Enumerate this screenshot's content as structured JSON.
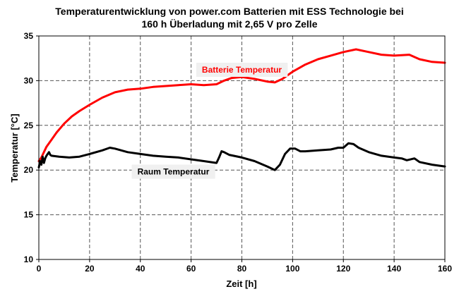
{
  "chart_data": {
    "type": "line",
    "title_line1": "Temperaturentwicklung von power.com Batterien mit ESS Technologie bei",
    "title_line2": "160 h Überladung mit 2,65 V pro Zelle",
    "xlabel": "Zeit [h]",
    "ylabel": "Temperatur [°C]",
    "xlim": [
      0,
      160
    ],
    "ylim": [
      10,
      35
    ],
    "xticks": [
      0,
      20,
      40,
      60,
      80,
      100,
      120,
      140,
      160
    ],
    "yticks": [
      10,
      15,
      20,
      25,
      30,
      35
    ],
    "grid": true,
    "legend": "none",
    "series": [
      {
        "name": "Batterie Temperatur",
        "color": "#ff0000",
        "points": [
          [
            0,
            21.0
          ],
          [
            1,
            21.4
          ],
          [
            2,
            22.0
          ],
          [
            3,
            22.6
          ],
          [
            5,
            23.4
          ],
          [
            7,
            24.2
          ],
          [
            10,
            25.2
          ],
          [
            13,
            26.0
          ],
          [
            16,
            26.6
          ],
          [
            20,
            27.3
          ],
          [
            25,
            28.1
          ],
          [
            30,
            28.7
          ],
          [
            35,
            29.0
          ],
          [
            40,
            29.1
          ],
          [
            45,
            29.3
          ],
          [
            50,
            29.4
          ],
          [
            55,
            29.5
          ],
          [
            60,
            29.6
          ],
          [
            65,
            29.5
          ],
          [
            70,
            29.6
          ],
          [
            73,
            30.0
          ],
          [
            76,
            30.3
          ],
          [
            80,
            30.4
          ],
          [
            85,
            30.2
          ],
          [
            90,
            29.9
          ],
          [
            93,
            29.8
          ],
          [
            96,
            30.2
          ],
          [
            100,
            31.0
          ],
          [
            105,
            31.8
          ],
          [
            110,
            32.4
          ],
          [
            115,
            32.8
          ],
          [
            120,
            33.2
          ],
          [
            125,
            33.5
          ],
          [
            130,
            33.2
          ],
          [
            135,
            32.9
          ],
          [
            140,
            32.8
          ],
          [
            146,
            32.9
          ],
          [
            150,
            32.4
          ],
          [
            155,
            32.1
          ],
          [
            160,
            32.0
          ]
        ]
      },
      {
        "name": "Raum Temperatur",
        "color": "#000000",
        "points": [
          [
            0,
            20.3
          ],
          [
            0.5,
            21.0
          ],
          [
            1,
            20.6
          ],
          [
            1.5,
            21.5
          ],
          [
            2,
            20.8
          ],
          [
            2.5,
            21.3
          ],
          [
            3,
            21.6
          ],
          [
            4,
            22.0
          ],
          [
            4.5,
            21.7
          ],
          [
            5,
            21.6
          ],
          [
            8,
            21.5
          ],
          [
            12,
            21.4
          ],
          [
            16,
            21.5
          ],
          [
            20,
            21.8
          ],
          [
            25,
            22.2
          ],
          [
            28,
            22.5
          ],
          [
            30,
            22.4
          ],
          [
            35,
            22.0
          ],
          [
            40,
            21.8
          ],
          [
            45,
            21.6
          ],
          [
            50,
            21.5
          ],
          [
            55,
            21.4
          ],
          [
            60,
            21.2
          ],
          [
            65,
            21.0
          ],
          [
            70,
            20.8
          ],
          [
            71,
            21.4
          ],
          [
            72,
            22.1
          ],
          [
            73,
            22.0
          ],
          [
            75,
            21.7
          ],
          [
            80,
            21.4
          ],
          [
            85,
            21.0
          ],
          [
            90,
            20.4
          ],
          [
            93,
            20.0
          ],
          [
            95,
            20.6
          ],
          [
            97,
            21.8
          ],
          [
            99,
            22.4
          ],
          [
            101,
            22.4
          ],
          [
            103,
            22.1
          ],
          [
            105,
            22.1
          ],
          [
            110,
            22.2
          ],
          [
            115,
            22.3
          ],
          [
            118,
            22.5
          ],
          [
            120,
            22.5
          ],
          [
            122,
            23.0
          ],
          [
            124,
            22.9
          ],
          [
            126,
            22.5
          ],
          [
            130,
            22.0
          ],
          [
            135,
            21.6
          ],
          [
            140,
            21.4
          ],
          [
            143,
            21.3
          ],
          [
            145,
            21.1
          ],
          [
            148,
            21.3
          ],
          [
            150,
            20.9
          ],
          [
            155,
            20.6
          ],
          [
            160,
            20.4
          ]
        ]
      }
    ],
    "annotations": [
      {
        "text": "Batterie Temperatur",
        "color": "#ff0000",
        "background": "#f0f0f0",
        "x": 80,
        "y": 30.9
      },
      {
        "text": "Raum Temperatur",
        "color": "#000000",
        "background": "#f0f0f0",
        "x": 53,
        "y": 19.5
      }
    ]
  }
}
